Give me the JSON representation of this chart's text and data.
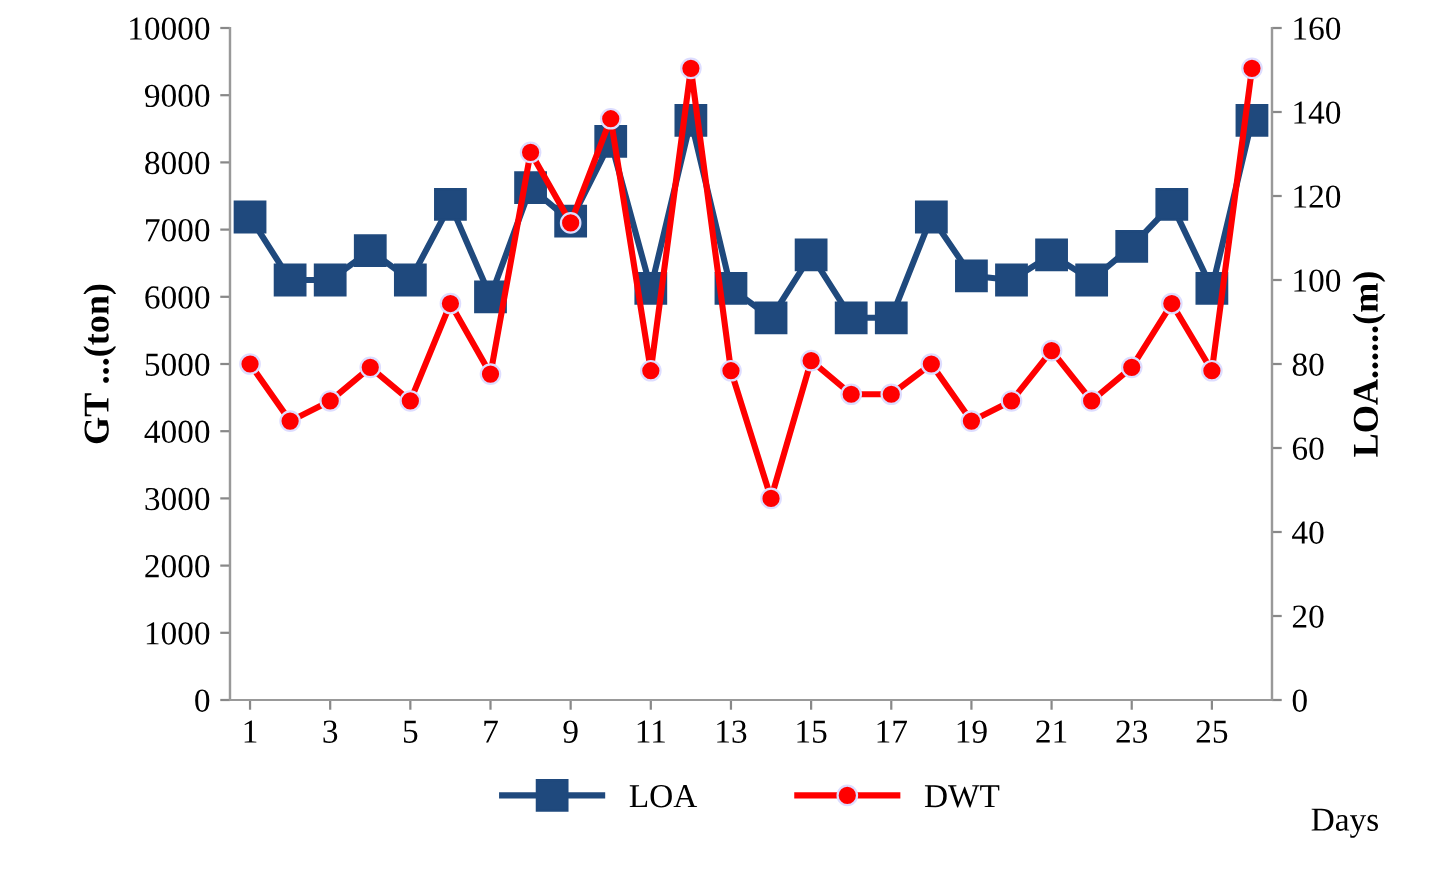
{
  "chart_data": {
    "type": "line",
    "xlabel": "Days",
    "ylabel": "GT ...(ton)",
    "y2label": "LOA......(m)",
    "x": [
      1,
      2,
      3,
      4,
      5,
      6,
      7,
      8,
      9,
      10,
      11,
      12,
      13,
      14,
      15,
      16,
      17,
      18,
      19,
      20,
      21,
      22,
      23,
      24,
      25,
      26
    ],
    "xlim": [
      0.5,
      26.5
    ],
    "xticks": [
      1,
      3,
      5,
      7,
      9,
      11,
      13,
      15,
      17,
      19,
      21,
      23,
      25
    ],
    "ylim": [
      0,
      10000
    ],
    "yticks": [
      0,
      1000,
      2000,
      3000,
      4000,
      5000,
      6000,
      7000,
      8000,
      9000,
      10000
    ],
    "y2lim": [
      0,
      160
    ],
    "y2ticks": [
      0,
      20,
      40,
      60,
      80,
      100,
      120,
      140,
      160
    ],
    "grid": false,
    "legend": "bottom",
    "series": [
      {
        "name": "LOA",
        "color": "#1f497d",
        "axis": "y2",
        "marker": "square",
        "values": [
          115,
          100,
          100,
          107,
          100,
          118,
          96,
          122,
          114,
          133,
          98,
          138,
          98,
          91,
          106,
          91,
          91,
          115,
          101,
          100,
          106,
          100,
          108,
          118,
          98,
          138
        ]
      },
      {
        "name": "DWT",
        "color": "#ff0000",
        "marker": "circle",
        "values": [
          5000,
          4150,
          4450,
          4950,
          4450,
          5900,
          4850,
          8150,
          7100,
          8650,
          4900,
          9400,
          4900,
          3000,
          5050,
          4550,
          4550,
          5000,
          4150,
          4450,
          5200,
          4450,
          4950,
          5900,
          4900,
          9400
        ]
      }
    ]
  }
}
